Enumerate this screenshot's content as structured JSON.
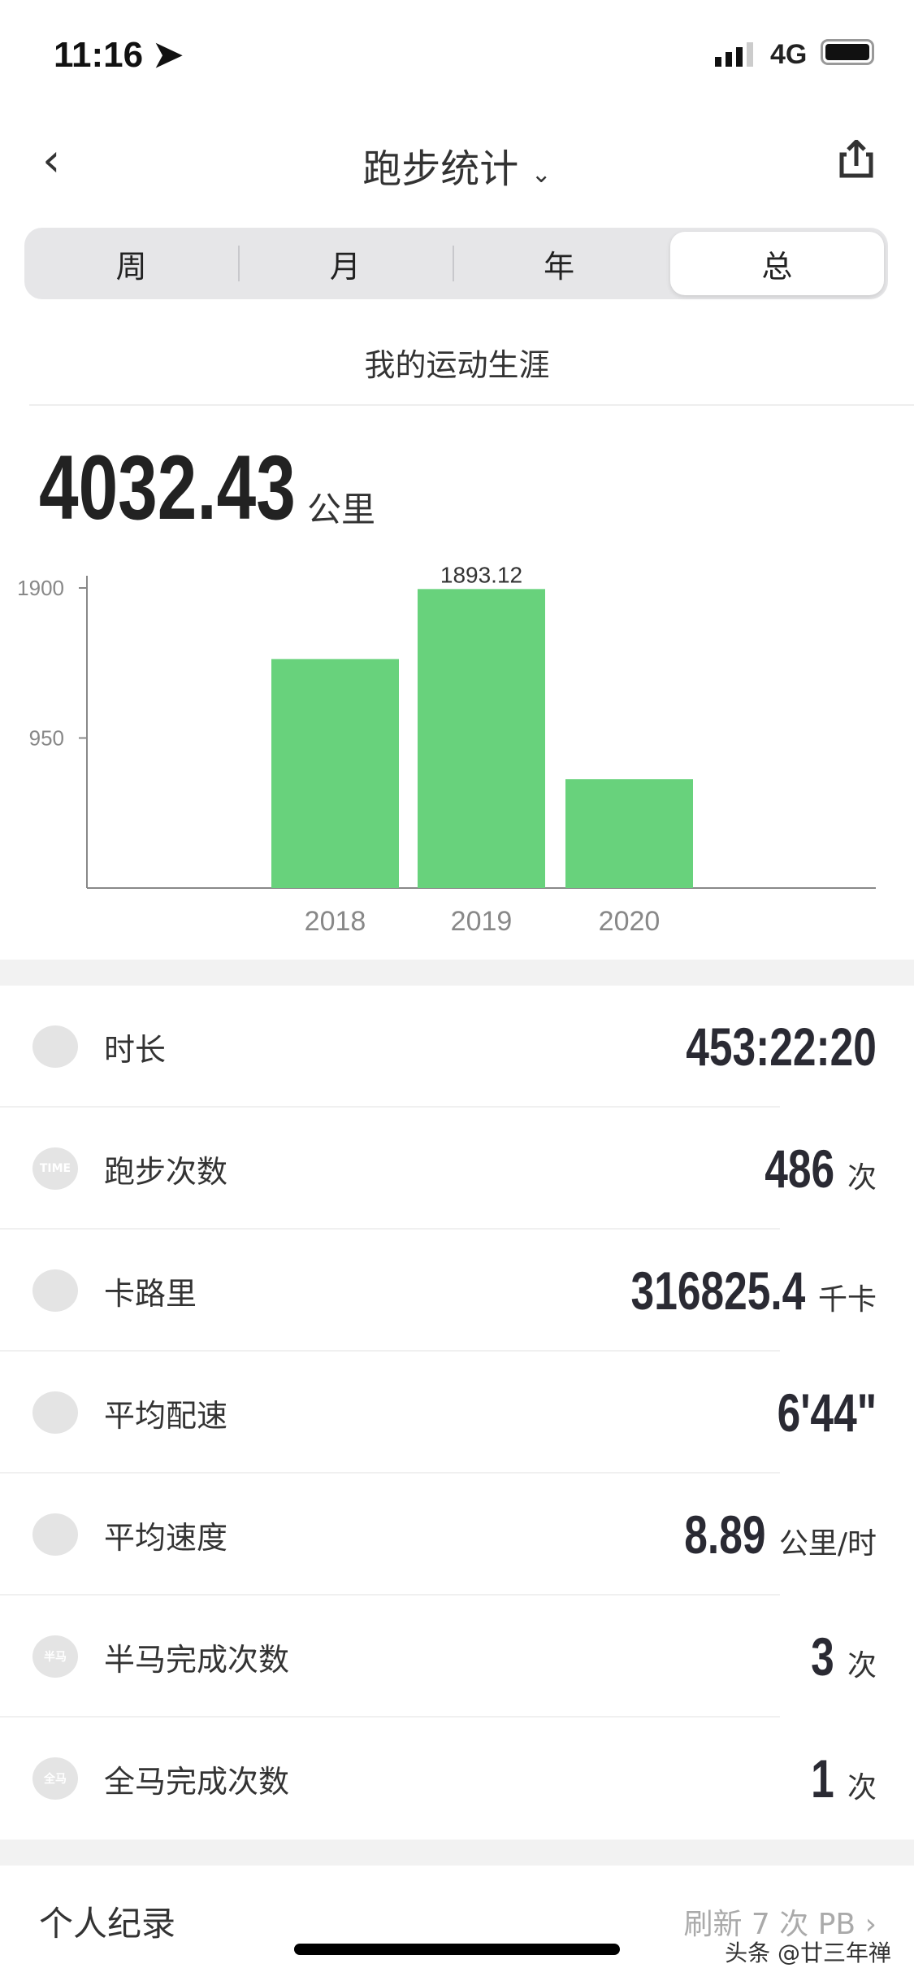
{
  "status_bar": {
    "time": "11:16",
    "network": "4G"
  },
  "nav": {
    "title": "跑步统计"
  },
  "tabs": [
    {
      "label": "周"
    },
    {
      "label": "月"
    },
    {
      "label": "年"
    },
    {
      "label": "总",
      "active": true
    }
  ],
  "section_title": "我的运动生涯",
  "total": {
    "value": "4032.43",
    "unit": "公里"
  },
  "chart_data": {
    "type": "bar",
    "categories": [
      "2018",
      "2019",
      "2020"
    ],
    "values": [
      1450,
      1893.12,
      689
    ],
    "data_labels": [
      null,
      "1893.12",
      null
    ],
    "y_ticks": [
      "950",
      "1900"
    ],
    "ylim": [
      0,
      1900
    ],
    "bar_color": "#68d27c"
  },
  "stats": [
    {
      "icon": "clock-icon",
      "label": "时长",
      "value": "453:22:20",
      "unit": ""
    },
    {
      "icon": "time-badge-icon",
      "icon_text": "TIME",
      "label": "跑步次数",
      "value": "486",
      "unit": "次"
    },
    {
      "icon": "flame-icon",
      "label": "卡路里",
      "value": "316825.4",
      "unit": "千卡"
    },
    {
      "icon": "pace-icon",
      "label": "平均配速",
      "value": "6'44\"",
      "unit": ""
    },
    {
      "icon": "speed-icon",
      "label": "平均速度",
      "value": "8.89",
      "unit": "公里/时"
    },
    {
      "icon": "half-marathon-icon",
      "icon_text": "半马",
      "label": "半马完成次数",
      "value": "3",
      "unit": "次"
    },
    {
      "icon": "full-marathon-icon",
      "icon_text": "全马",
      "label": "全马完成次数",
      "value": "1",
      "unit": "次"
    }
  ],
  "personal_records": {
    "label": "个人纪录",
    "link": "刷新 7 次 PB"
  },
  "watermark": "头条 @廿三年禅"
}
